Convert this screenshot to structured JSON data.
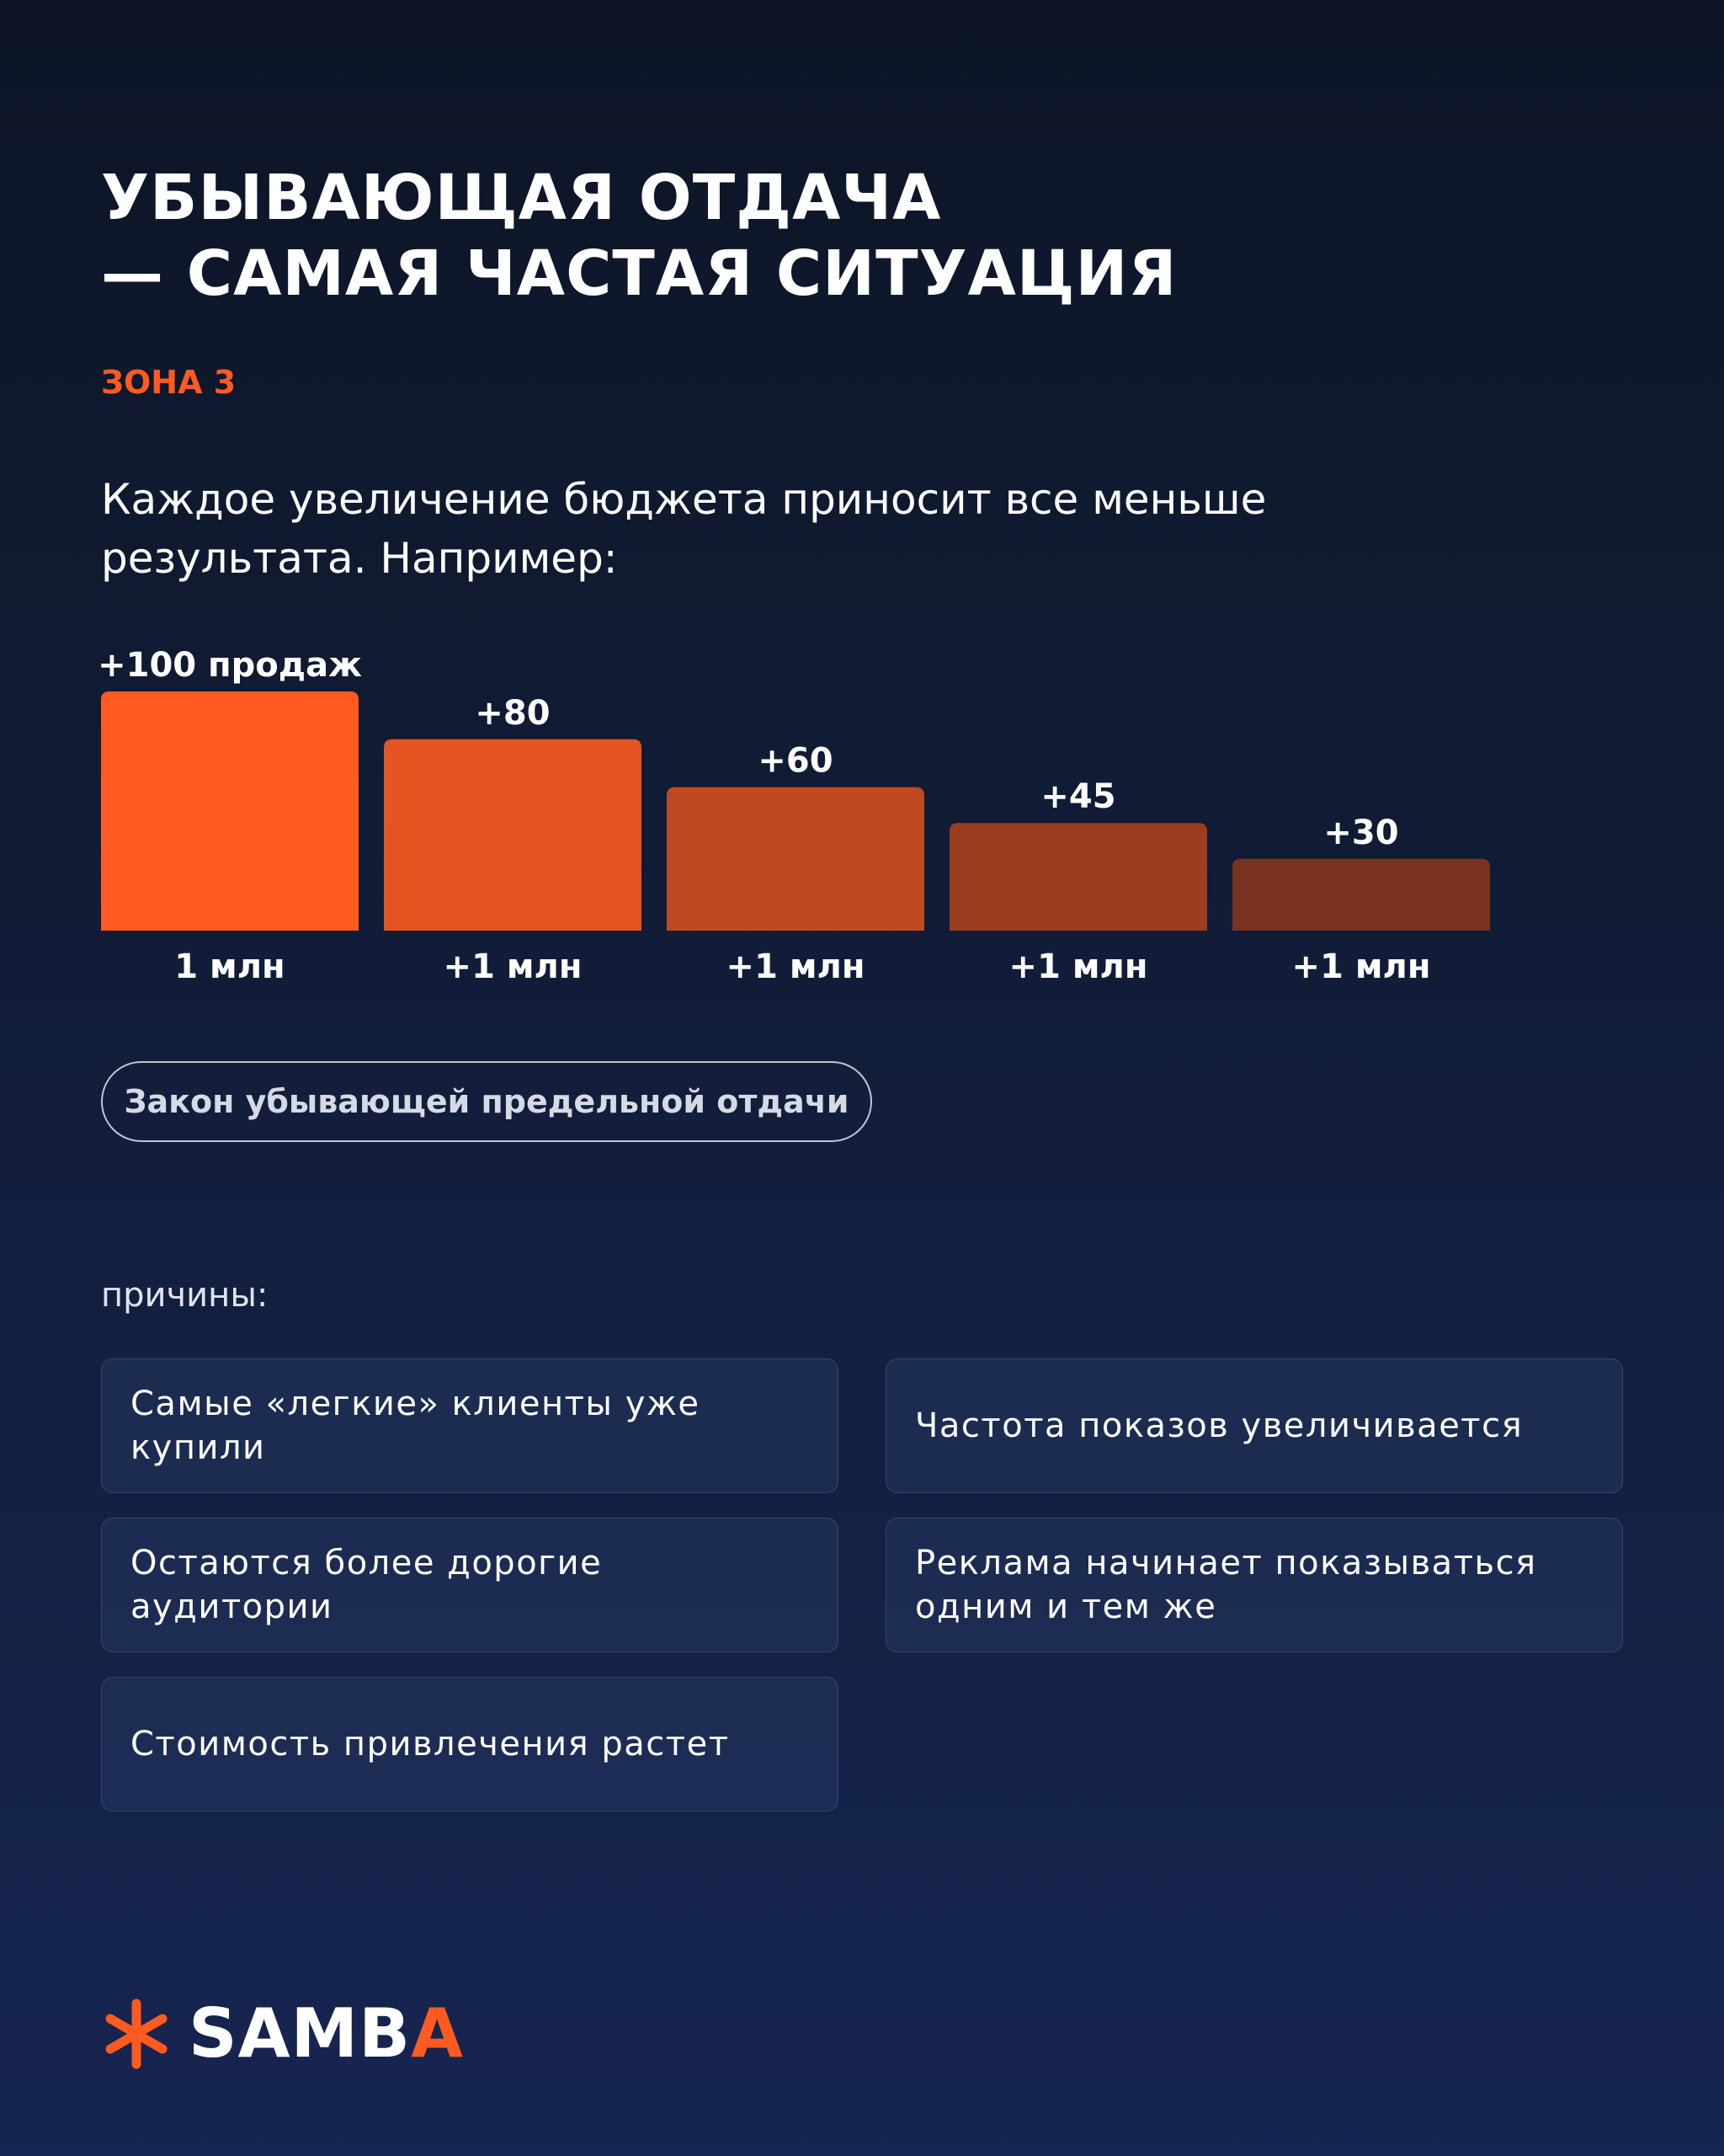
{
  "header": {
    "title_lines": [
      "УБЫВАЮЩАЯ ОТДАЧА",
      "— САМАЯ ЧАСТАЯ СИТУАЦИЯ"
    ],
    "zone": "ЗОНА 3",
    "subtitle_lines": [
      "Каждое увеличение бюджета приносит все меньше",
      "результата. Например:"
    ]
  },
  "chart_data": {
    "type": "bar",
    "categories": [
      "1 млн",
      "+1 млн",
      "+1 млн",
      "+1 млн",
      "+1 млн"
    ],
    "values": [
      100,
      80,
      60,
      45,
      30
    ],
    "value_labels": [
      "+100 продаж",
      "+80",
      "+60",
      "+45",
      "+30"
    ],
    "colors": [
      "#ff5a1f",
      "#e35522",
      "#bf4a22",
      "#9a3d20",
      "#7a3320"
    ],
    "title": "",
    "xlabel": "",
    "ylabel": "",
    "ylim": [
      0,
      100
    ],
    "grid": false
  },
  "pill_label": "Закон убывающей предельной отдачи",
  "reasons": {
    "label": "причины:",
    "items": [
      [
        "Самые «легкие» клиенты уже",
        "купили"
      ],
      [
        "Частота показов увеличивается"
      ],
      [
        "Остаются более дорогие",
        "аудитории"
      ],
      [
        "Реклама начинает показываться",
        "одним и тем же"
      ],
      [
        "Стоимость привлечения растет"
      ]
    ]
  },
  "brand": {
    "name_main": "SAMB",
    "name_accent": "A",
    "icon": "asterisk-icon",
    "accent_color": "#ff5a1f"
  }
}
